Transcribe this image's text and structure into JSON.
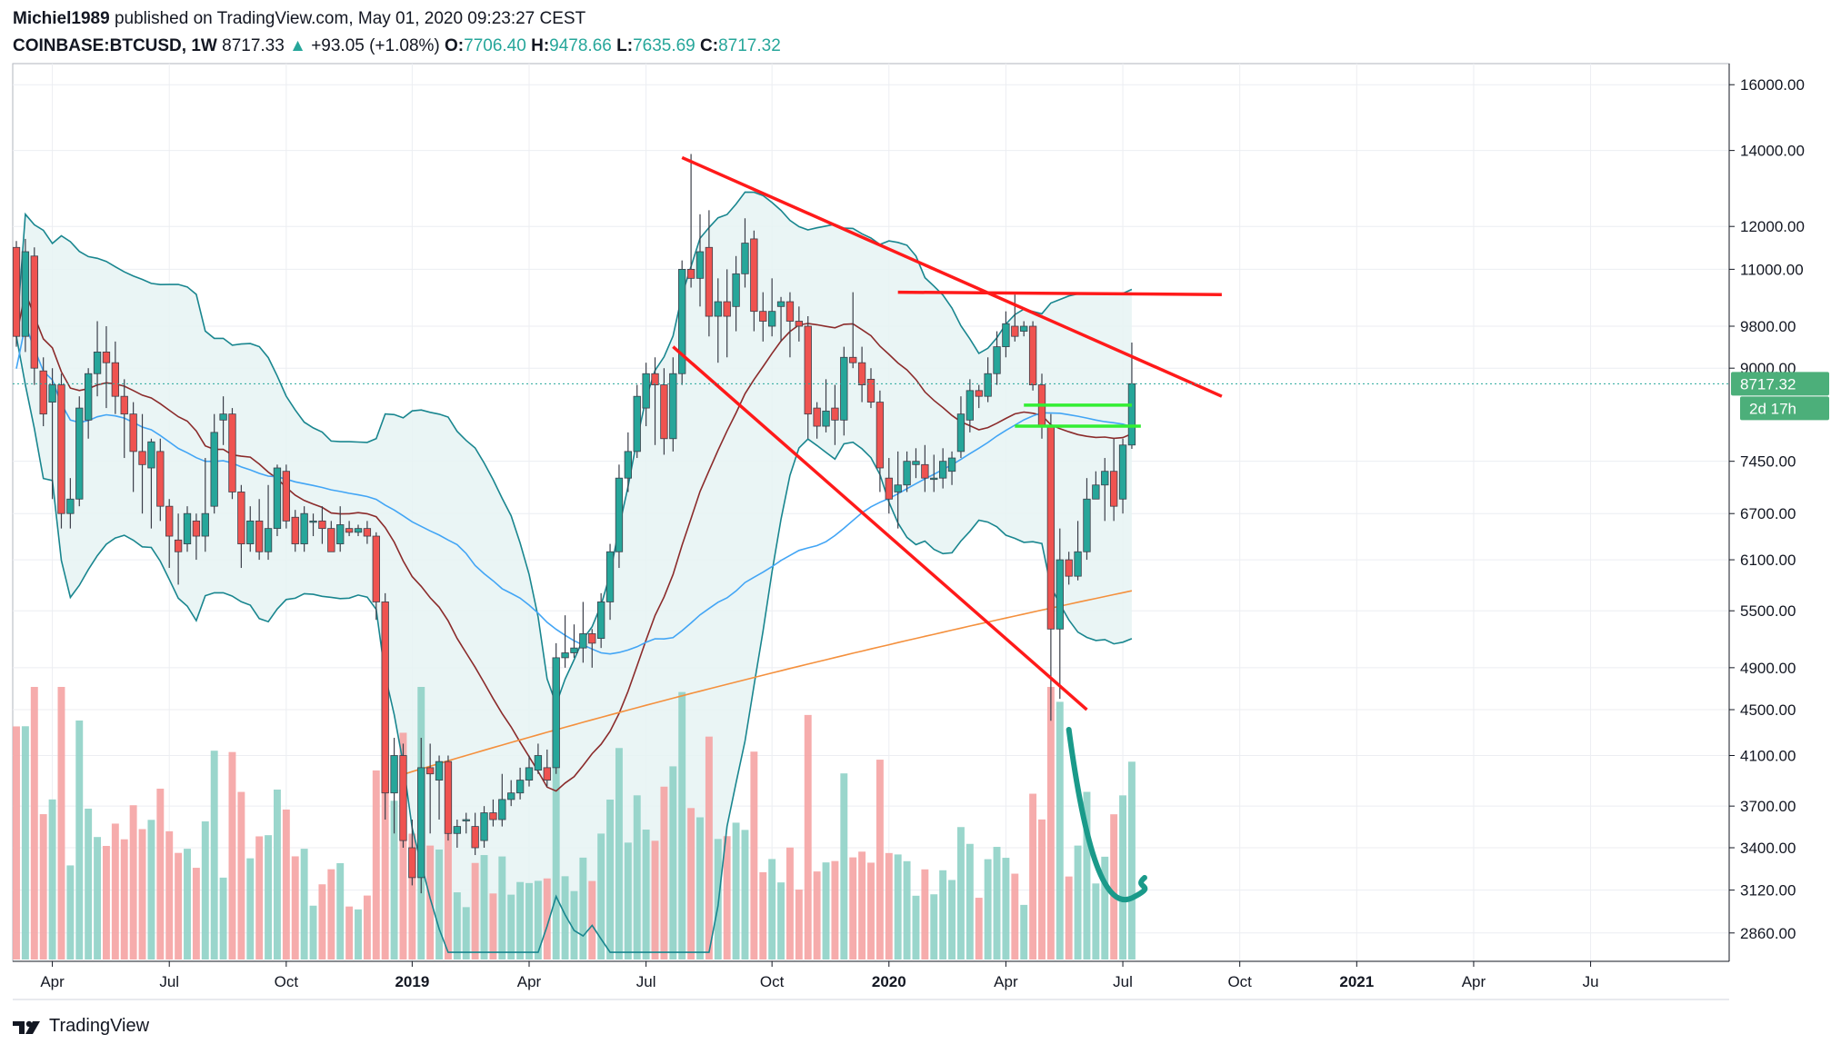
{
  "header": {
    "author": "Michiel1989",
    "published_text": "published on TradingView.com, May 01, 2020 09:23:27 CEST",
    "symbol": "COINBASE:BTCUSD, 1W",
    "last": "8717.33",
    "change_arrow": "▲",
    "change": "+93.05 (+1.08%)",
    "o_label": "O:",
    "o_value": "7706.40",
    "h_label": "H:",
    "h_value": "9478.66",
    "l_label": "L:",
    "l_value": "7635.69",
    "c_label": "C:",
    "c_value": "8717.32"
  },
  "branding": {
    "name": "TradingView",
    "icon": "tradingview-logo-icon"
  },
  "price_tag": {
    "value": "8717.32",
    "timer": "2d 17h"
  },
  "colors": {
    "up": "#26a69a",
    "down": "#ef5350",
    "ma20": "#8b2b2b",
    "ma50": "#42a5f5",
    "ma200": "#f4903d",
    "bb": "#19868f",
    "bb_fill": "#e6f3f3",
    "trend_red": "#ff1a1a",
    "level_green": "#33ee33",
    "curve": "#1a9a8a",
    "vol_up": "#8fd1c7",
    "vol_down": "#f5a3a3"
  },
  "chart_data": {
    "type": "candlestick",
    "timeframe": "1W",
    "scale": "log",
    "y_ticks": [
      16000,
      14000,
      12000,
      11000,
      9800,
      9000,
      7450,
      6700,
      6100,
      5500,
      4900,
      4500,
      4100,
      3700,
      3400,
      3120,
      2860
    ],
    "y_tick_labels": [
      "16000.00",
      "14000.00",
      "12000.00",
      "11000.00",
      "9800.00",
      "9000.00",
      "7450.00",
      "6700.00",
      "6100.00",
      "5500.00",
      "4900.00",
      "4500.00",
      "4100.00",
      "3700.00",
      "3400.00",
      "3120.00",
      "2860.00"
    ],
    "x_ticks": [
      {
        "label": "Apr",
        "bold": false,
        "week": 4
      },
      {
        "label": "Jul",
        "bold": false,
        "week": 17
      },
      {
        "label": "Oct",
        "bold": false,
        "week": 30
      },
      {
        "label": "2019",
        "bold": true,
        "week": 44
      },
      {
        "label": "Apr",
        "bold": false,
        "week": 57
      },
      {
        "label": "Jul",
        "bold": false,
        "week": 70
      },
      {
        "label": "Oct",
        "bold": false,
        "week": 84
      },
      {
        "label": "2020",
        "bold": true,
        "week": 97
      },
      {
        "label": "Apr",
        "bold": false,
        "week": 110
      },
      {
        "label": "Jul",
        "bold": false,
        "week": 123
      },
      {
        "label": "Oct",
        "bold": false,
        "week": 136
      },
      {
        "label": "2021",
        "bold": true,
        "week": 149
      },
      {
        "label": "Apr",
        "bold": false,
        "week": 162
      },
      {
        "label": "Ju",
        "bold": false,
        "week": 175
      }
    ],
    "candles": [
      [
        11500,
        9600,
        11650,
        9400
      ],
      [
        9600,
        11400,
        11700,
        9300
      ],
      [
        11300,
        9000,
        11500,
        8700
      ],
      [
        8950,
        8200,
        9200,
        8000
      ],
      [
        8400,
        8700,
        9000,
        6900
      ],
      [
        8700,
        6700,
        8900,
        6500
      ],
      [
        6700,
        6900,
        7200,
        6500
      ],
      [
        6900,
        8300,
        8500,
        6800
      ],
      [
        8100,
        8900,
        9000,
        7800
      ],
      [
        8900,
        9300,
        9900,
        8500
      ],
      [
        9300,
        9100,
        9800,
        8300
      ],
      [
        9100,
        8500,
        9500,
        8200
      ],
      [
        8500,
        8200,
        8800,
        7500
      ],
      [
        8200,
        7600,
        8400,
        7000
      ],
      [
        7600,
        7400,
        8200,
        6700
      ],
      [
        7350,
        7750,
        7800,
        6500
      ],
      [
        7600,
        6800,
        7800,
        6600
      ],
      [
        6800,
        6400,
        6900,
        6000
      ],
      [
        6350,
        6200,
        6700,
        5800
      ],
      [
        6300,
        6700,
        6800,
        6200
      ],
      [
        6600,
        6400,
        6700,
        6100
      ],
      [
        6400,
        6700,
        7500,
        6200
      ],
      [
        6800,
        7900,
        8200,
        6700
      ],
      [
        8100,
        8200,
        8500,
        7700
      ],
      [
        8200,
        7000,
        8300,
        6900
      ],
      [
        7000,
        6300,
        7100,
        6000
      ],
      [
        6300,
        6600,
        6800,
        6200
      ],
      [
        6600,
        6200,
        6900,
        6100
      ],
      [
        6200,
        6500,
        7100,
        6100
      ],
      [
        6500,
        7350,
        7400,
        6400
      ],
      [
        7300,
        6600,
        7400,
        6500
      ],
      [
        6650,
        6300,
        6750,
        6200
      ],
      [
        6300,
        6700,
        6800,
        6200
      ],
      [
        6600,
        6600,
        6700,
        6400
      ],
      [
        6600,
        6500,
        6800,
        6300
      ],
      [
        6500,
        6200,
        6600,
        6200
      ],
      [
        6300,
        6550,
        6800,
        6200
      ],
      [
        6500,
        6450,
        6600,
        6400
      ],
      [
        6450,
        6500,
        6550,
        6400
      ],
      [
        6500,
        6400,
        6600,
        6300
      ],
      [
        6400,
        5600,
        6450,
        5400
      ],
      [
        5600,
        3800,
        5700,
        3600
      ],
      [
        3800,
        4100,
        4250,
        3500
      ],
      [
        4100,
        3450,
        4200,
        3400
      ],
      [
        3400,
        3200,
        3600,
        3150
      ],
      [
        3200,
        4000,
        4250,
        3100
      ],
      [
        4000,
        3950,
        4200,
        3500
      ],
      [
        3900,
        4050,
        4100,
        3600
      ],
      [
        4050,
        3500,
        4100,
        3450
      ],
      [
        3500,
        3550,
        3600,
        3400
      ],
      [
        3600,
        3600,
        3650,
        3500
      ],
      [
        3550,
        3400,
        3650,
        3350
      ],
      [
        3450,
        3650,
        3700,
        3400
      ],
      [
        3650,
        3600,
        3750,
        3550
      ],
      [
        3600,
        3750,
        3950,
        3550
      ],
      [
        3750,
        3800,
        3900,
        3700
      ],
      [
        3800,
        3900,
        4000,
        3750
      ],
      [
        3900,
        4000,
        4100,
        3850
      ],
      [
        3980,
        4100,
        4200,
        3950
      ],
      [
        4000,
        3900,
        4150,
        3850
      ],
      [
        4000,
        5000,
        5150,
        3950
      ],
      [
        5000,
        5050,
        5450,
        4900
      ],
      [
        5050,
        5100,
        5350,
        5000
      ],
      [
        5100,
        5250,
        5600,
        4950
      ],
      [
        5250,
        5150,
        5300,
        4900
      ],
      [
        5200,
        5600,
        5700,
        5100
      ],
      [
        5600,
        6200,
        6300,
        5400
      ],
      [
        6200,
        7200,
        7400,
        6000
      ],
      [
        7200,
        7600,
        7900,
        7000
      ],
      [
        7600,
        8500,
        8700,
        7500
      ],
      [
        8300,
        8900,
        9100,
        8000
      ],
      [
        8900,
        8700,
        9200,
        7700
      ],
      [
        8700,
        7800,
        9000,
        7550
      ],
      [
        7800,
        8900,
        9200,
        7600
      ],
      [
        8900,
        11000,
        11200,
        8700
      ],
      [
        11000,
        10800,
        13900,
        10600
      ],
      [
        10800,
        11400,
        12300,
        10200
      ],
      [
        11500,
        10000,
        12400,
        9600
      ],
      [
        10000,
        10300,
        10800,
        9100
      ],
      [
        10300,
        10000,
        11000,
        9200
      ],
      [
        10200,
        10900,
        11300,
        9700
      ],
      [
        10900,
        11600,
        12200,
        10600
      ],
      [
        11700,
        10100,
        11900,
        9700
      ],
      [
        10100,
        9900,
        10500,
        9500
      ],
      [
        9800,
        10100,
        10800,
        9600
      ],
      [
        10200,
        10300,
        10400,
        9500
      ],
      [
        10300,
        9900,
        10500,
        9200
      ],
      [
        9900,
        9800,
        10200,
        9500
      ],
      [
        9800,
        8200,
        10000,
        7800
      ],
      [
        8300,
        8000,
        8400,
        7800
      ],
      [
        8000,
        8250,
        8800,
        7900
      ],
      [
        8300,
        8100,
        8700,
        7700
      ],
      [
        8100,
        9200,
        9400,
        7850
      ],
      [
        9200,
        9100,
        10500,
        9000
      ],
      [
        9100,
        8700,
        9400,
        8400
      ],
      [
        8800,
        8400,
        9000,
        8300
      ],
      [
        8400,
        7350,
        8600,
        7000
      ],
      [
        7200,
        6900,
        7500,
        6700
      ],
      [
        7000,
        7100,
        7600,
        6500
      ],
      [
        7100,
        7450,
        7600,
        7000
      ],
      [
        7400,
        7450,
        7650,
        7200
      ],
      [
        7400,
        7200,
        7700,
        7000
      ],
      [
        7200,
        7200,
        7550,
        7000
      ],
      [
        7200,
        7450,
        7650,
        7050
      ],
      [
        7300,
        7500,
        7600,
        7100
      ],
      [
        7600,
        8200,
        8500,
        7500
      ],
      [
        8100,
        8600,
        8800,
        7900
      ],
      [
        8600,
        8500,
        8700,
        8300
      ],
      [
        8500,
        8900,
        9200,
        8400
      ],
      [
        8900,
        9400,
        9700,
        8700
      ],
      [
        9400,
        9850,
        10100,
        9200
      ],
      [
        9800,
        9600,
        10450,
        9500
      ],
      [
        9700,
        9800,
        9900,
        9600
      ],
      [
        9800,
        8700,
        9900,
        8600
      ],
      [
        8700,
        8000,
        8900,
        7800
      ],
      [
        8000,
        5300,
        8200,
        4400
      ],
      [
        5300,
        6100,
        6500,
        4600
      ],
      [
        6100,
        5900,
        6200,
        5800
      ],
      [
        5900,
        6200,
        6600,
        5850
      ],
      [
        6200,
        6900,
        7200,
        6100
      ],
      [
        6900,
        7100,
        7300,
        6900
      ],
      [
        7100,
        7300,
        7500,
        6600
      ],
      [
        7300,
        6800,
        7800,
        6600
      ],
      [
        6900,
        7700,
        7800,
        6700
      ],
      [
        7700,
        8720,
        9480,
        7640
      ]
    ],
    "annotations": [
      {
        "type": "trendline",
        "color": "#ff1a1a",
        "from": [
          74,
          13800
        ],
        "to": [
          134,
          8500
        ],
        "label": ""
      },
      {
        "type": "trendline",
        "color": "#ff1a1a",
        "from": [
          73,
          9400
        ],
        "to": [
          119,
          4500
        ],
        "label": ""
      },
      {
        "type": "horizontal",
        "color": "#ff1a1a",
        "from": [
          98,
          10500
        ],
        "to": [
          134,
          10450
        ],
        "label": ""
      },
      {
        "type": "horizontal",
        "color": "#33ee33",
        "from": [
          112,
          8350
        ],
        "to": [
          124,
          8350
        ],
        "label": ""
      },
      {
        "type": "horizontal",
        "color": "#33ee33",
        "from": [
          111,
          8000
        ],
        "to": [
          125,
          8000
        ],
        "label": ""
      }
    ]
  }
}
